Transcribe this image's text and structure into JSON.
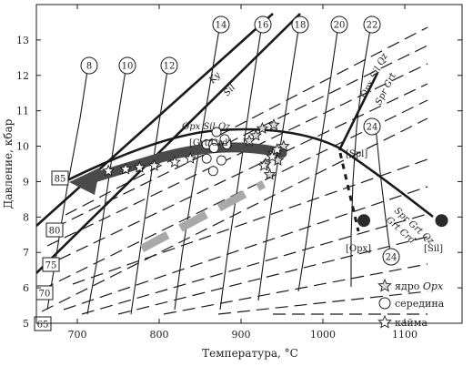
{
  "chart_data": {
    "type": "scatter",
    "xlabel": "Температура, °C",
    "ylabel": "Давление, кбар",
    "xlim": [
      650,
      1170
    ],
    "ylim": [
      5,
      14
    ],
    "x_ticks": [
      "700",
      "800",
      "900",
      "1000",
      "1100"
    ],
    "y_ticks": [
      "5",
      "6",
      "7",
      "8",
      "9",
      "10",
      "11",
      "12",
      "13"
    ],
    "phase_labels": {
      "ky": "Ky",
      "sil": "Sil",
      "opx_sil_qz": "Opx Sil Qz",
      "grt_crd_top": "[Grt Crd]",
      "opx_sil_qz_r": "Opx Sil Qz",
      "spr_grt_r": "Spr Grt",
      "spl": "[Spl]",
      "spr_grt_qz": "Spr Grt Qz",
      "grt_crd": "Grt Crd",
      "opx_inv": "[Opx]",
      "sil_inv": "[Sil]"
    },
    "isopleths_circle": [
      "8",
      "10",
      "12",
      "14",
      "16",
      "18",
      "20",
      "22",
      "24",
      "24"
    ],
    "isopleths_box": [
      "85",
      "80",
      "75",
      "70",
      "65"
    ],
    "invariant_points": [
      {
        "label": "[Opx]",
        "x": 1050,
        "y": 7.9
      },
      {
        "label": "[Sil]",
        "x": 1145,
        "y": 7.9
      }
    ],
    "series": [
      {
        "name": "ядро Opx",
        "marker": "star-filled",
        "points": [
          [
            926,
            10.5
          ],
          [
            940,
            10.6
          ],
          [
            918,
            10.3
          ],
          [
            952,
            10.0
          ],
          [
            940,
            9.8
          ],
          [
            930,
            9.5
          ],
          [
            945,
            9.6
          ],
          [
            935,
            9.2
          ],
          [
            910,
            10.15
          ]
        ]
      },
      {
        "name": "середина",
        "marker": "circle",
        "points": [
          [
            858,
            10.05
          ],
          [
            866,
            10.05
          ],
          [
            883,
            10.05
          ],
          [
            867,
            9.95
          ],
          [
            858,
            9.65
          ],
          [
            876,
            9.6
          ],
          [
            866,
            9.3
          ],
          [
            880,
            10.2
          ],
          [
            870,
            10.4
          ]
        ]
      },
      {
        "name": "кайма",
        "marker": "star-open",
        "points": [
          [
            738,
            9.3
          ],
          [
            759,
            9.35
          ],
          [
            776,
            9.4
          ],
          [
            794,
            9.45
          ],
          [
            819,
            9.55
          ],
          [
            838,
            9.65
          ],
          [
            928,
            9.45
          ],
          [
            938,
            9.7
          ],
          [
            944,
            9.9
          ]
        ]
      }
    ],
    "legend_position": "bottom-right",
    "grid": false
  },
  "legend": {
    "core": "ядро",
    "core_it": "Opx",
    "mid": "середина",
    "rim": "кайма"
  },
  "colors": {
    "line": "#1a1a1a",
    "thick_path": "#4a4a4a",
    "gray_dash": "#a9a9a9",
    "dark_dot": "#2a2a2a"
  }
}
